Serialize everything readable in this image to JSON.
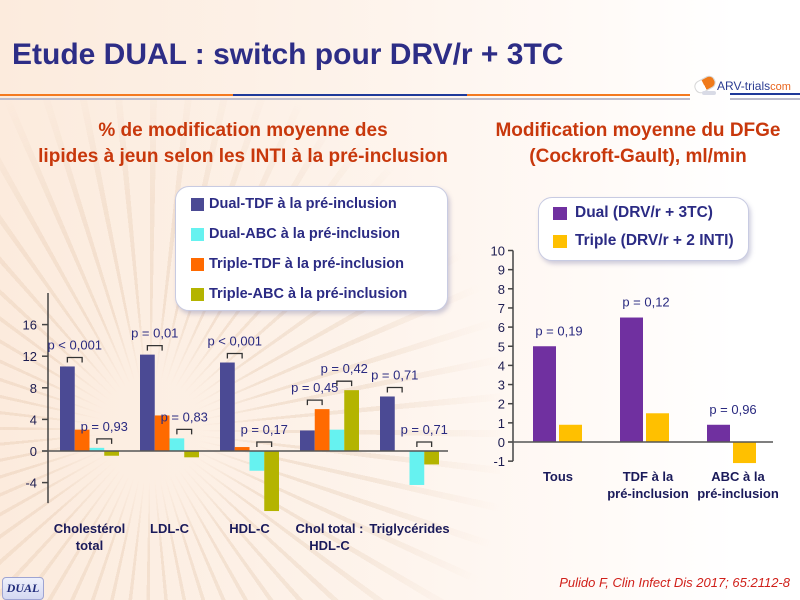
{
  "slide": {
    "title": "Etude DUAL : switch pour DRV/r + 3TC",
    "colors": {
      "title": "#2d2d86",
      "subtitle": "#c8380c",
      "rule_orange": "#f47a20",
      "rule_blue": "#1f3a9a"
    }
  },
  "logo": {
    "part1": "ARV-",
    "part2": "trials",
    "part3": "com"
  },
  "chart_data": [
    {
      "type": "bar",
      "title_lines": [
        "% de modification moyenne des",
        "lipides à jeun selon les INTI à la pré-inclusion"
      ],
      "categories": [
        [
          "Cholestérol",
          "total"
        ],
        [
          "LDL-C"
        ],
        [
          "HDL-C"
        ],
        [
          "Chol total :",
          "HDL-C"
        ],
        [
          "Triglycérides"
        ]
      ],
      "series": [
        {
          "name": "Dual-TDF à la pré-inclusion",
          "color": "#4b4a94",
          "values": [
            10.7,
            12.2,
            11.2,
            2.6,
            6.9
          ]
        },
        {
          "name": "Dual-ABC à la pré-inclusion",
          "color": "#66f2f0",
          "values": [
            0.4,
            1.6,
            -2.5,
            2.7,
            -4.3
          ]
        },
        {
          "name": "Triple-TDF à la pré-inclusion",
          "color": "#ff6a00",
          "values": [
            2.7,
            4.5,
            0.5,
            5.3,
            null
          ]
        },
        {
          "name": "Triple-ABC à la pré-inclusion",
          "color": "#b4b400",
          "values": [
            -0.6,
            -0.8,
            -7.6,
            7.7,
            -1.7
          ]
        }
      ],
      "p_values_tdf": [
        "p < 0,001",
        "p = 0,01",
        "p < 0,001",
        "p = 0,45",
        "p = 0,71"
      ],
      "p_values_abc": [
        "p = 0,93",
        "p = 0,83",
        "p = 0,17",
        "p = 0,42",
        "p = 0,71"
      ],
      "y_ticks": [
        16,
        12,
        8,
        4,
        0,
        -4
      ],
      "ylim": [
        -6.6,
        20
      ],
      "xlabel": "",
      "ylabel": "",
      "grid": false,
      "legend": "top-right"
    },
    {
      "type": "bar",
      "title_lines": [
        "Modification moyenne du DFGe",
        "(Cockroft-Gault), ml/min"
      ],
      "categories": [
        [
          "Tous"
        ],
        [
          "TDF à la",
          "pré-inclusion"
        ],
        [
          "ABC à la",
          "pré-inclusion"
        ]
      ],
      "series": [
        {
          "name": "Dual (DRV/r + 3TC)",
          "color": "#7030a0",
          "values": [
            5.0,
            6.5,
            0.9
          ]
        },
        {
          "name": "Triple (DRV/r + 2 INTI)",
          "color": "#ffc000",
          "values": [
            0.9,
            1.5,
            -1.1
          ]
        }
      ],
      "p_values": [
        "p = 0,19",
        "p = 0,12",
        "p = 0,96"
      ],
      "y_ticks": [
        10,
        9,
        8,
        7,
        6,
        5,
        4,
        3,
        2,
        1,
        0,
        -1
      ],
      "ylim": [
        -1,
        10
      ],
      "xlabel": "",
      "ylabel": "",
      "grid": false,
      "legend": "top"
    }
  ],
  "footer": {
    "badge": "DUAL",
    "citation": "Pulido F, Clin Infect Dis 2017; 65:2112-8"
  }
}
